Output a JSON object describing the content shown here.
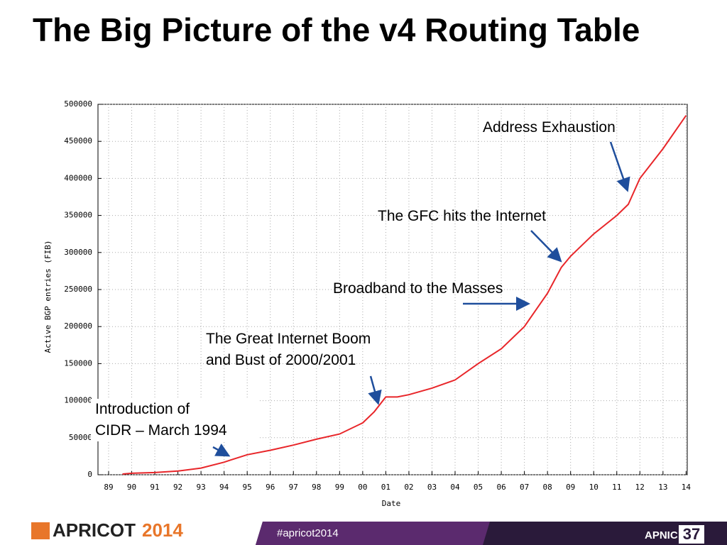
{
  "slide_title": "The Big Picture of the v4 Routing Table",
  "chart_data": {
    "type": "line",
    "x": [
      1989.6,
      1990,
      1991,
      1992,
      1993,
      1994,
      1994.3,
      1995,
      1996,
      1997,
      1998,
      1999,
      2000,
      2000.5,
      2001,
      2001.5,
      2002,
      2003,
      2004,
      2005,
      2006,
      2007,
      2008,
      2008.6,
      2009,
      2010,
      2011,
      2011.5,
      2012,
      2013,
      2014
    ],
    "values": [
      1000,
      2000,
      3000,
      5000,
      9000,
      17000,
      20000,
      27000,
      33000,
      40000,
      48000,
      55000,
      70000,
      85000,
      105000,
      105000,
      108000,
      117000,
      128000,
      150000,
      170000,
      200000,
      245000,
      280000,
      295000,
      325000,
      350000,
      365000,
      400000,
      440000,
      485000
    ],
    "color": "#e8262a",
    "xlim": [
      1988.54,
      2014.05
    ],
    "xticks": [
      {
        "value": 1989,
        "label": "89"
      },
      {
        "value": 1990,
        "label": "90"
      },
      {
        "value": 1991,
        "label": "91"
      },
      {
        "value": 1992,
        "label": "92"
      },
      {
        "value": 1993,
        "label": "93"
      },
      {
        "value": 1994,
        "label": "94"
      },
      {
        "value": 1995,
        "label": "95"
      },
      {
        "value": 1996,
        "label": "96"
      },
      {
        "value": 1997,
        "label": "97"
      },
      {
        "value": 1998,
        "label": "98"
      },
      {
        "value": 1999,
        "label": "99"
      },
      {
        "value": 2000,
        "label": "00"
      },
      {
        "value": 2001,
        "label": "01"
      },
      {
        "value": 2002,
        "label": "02"
      },
      {
        "value": 2003,
        "label": "03"
      },
      {
        "value": 2004,
        "label": "04"
      },
      {
        "value": 2005,
        "label": "05"
      },
      {
        "value": 2006,
        "label": "06"
      },
      {
        "value": 2007,
        "label": "07"
      },
      {
        "value": 2008,
        "label": "08"
      },
      {
        "value": 2009,
        "label": "09"
      },
      {
        "value": 2010,
        "label": "10"
      },
      {
        "value": 2011,
        "label": "11"
      },
      {
        "value": 2012,
        "label": "12"
      },
      {
        "value": 2013,
        "label": "13"
      },
      {
        "value": 2014,
        "label": "14"
      }
    ],
    "ylim": [
      0,
      500000
    ],
    "yticks": [
      0,
      50000,
      100000,
      150000,
      200000,
      250000,
      300000,
      350000,
      400000,
      450000,
      500000
    ],
    "grid": true,
    "x_label": "Date",
    "y_label": "Active BGP entries (FIB)",
    "annotations": [
      "Address Exhaustion",
      "The GFC hits the Internet",
      "Broadband to the Masses",
      "The Great Internet Boom\nand Bust of 2000/2001",
      "Introduction of\nCIDR – March 1994"
    ]
  },
  "footer": {
    "logo": "APRICOT",
    "logo_year": "2014",
    "hashtag": "#apricot2014",
    "org": "APNIC",
    "org_number": "37"
  }
}
